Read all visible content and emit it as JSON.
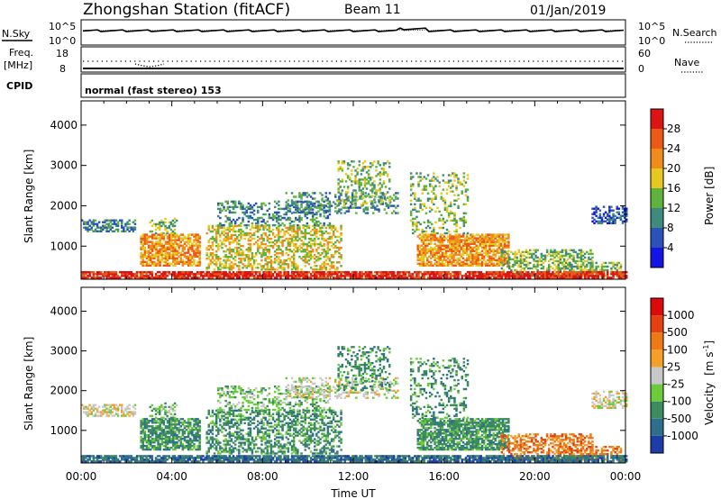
{
  "header": {
    "station": "Zhongshan Station (fitACF)",
    "beam": "Beam 11",
    "date": "01/Jan/2019"
  },
  "noise_panel": {
    "left_label": "N.Sky",
    "right_label": "N.Search",
    "left_ticks": [
      "10^5",
      "10^0"
    ],
    "right_ticks": [
      "10^5",
      "10^0"
    ]
  },
  "freq_panel": {
    "left_label_1": "Freq.",
    "left_label_2": "[MHz]",
    "right_label": "Nave",
    "left_ticks": [
      "18",
      "8"
    ],
    "right_ticks": [
      "60",
      "0"
    ]
  },
  "cpid": {
    "label": "CPID",
    "mode": "normal (fast stereo) 153"
  },
  "chart_data": [
    {
      "type": "heatmap",
      "name": "power",
      "ylabel": "Slant Range [km]",
      "xlabel": "",
      "ylim": [
        180,
        4600
      ],
      "y_ticks": [
        "4000",
        "3000",
        "2000",
        "1000"
      ],
      "x_ticks": [
        "00:00",
        "04:00",
        "08:00",
        "12:00",
        "16:00",
        "20:00",
        "00:00"
      ],
      "colorbar": {
        "label": "Power [dB]",
        "ticks": [
          "28",
          "24",
          "20",
          "16",
          "12",
          "8",
          "4"
        ],
        "levels": [
          0,
          4,
          8,
          12,
          16,
          20,
          24,
          28,
          30
        ],
        "colors": [
          "#1515e6",
          "#2a52b8",
          "#3f8a7e",
          "#5fb23c",
          "#e6c81e",
          "#f08c1e",
          "#eb5a14",
          "#dc1414"
        ]
      }
    },
    {
      "type": "heatmap",
      "name": "velocity",
      "ylabel": "Slant Range [km]",
      "xlabel": "Time UT",
      "ylim": [
        180,
        4600
      ],
      "y_ticks": [
        "4000",
        "3000",
        "2000",
        "1000"
      ],
      "x_ticks": [
        "00:00",
        "04:00",
        "08:00",
        "12:00",
        "16:00",
        "20:00",
        "00:00"
      ],
      "colorbar": {
        "label": "Velocity",
        "unit_prefix": "[m s",
        "unit_exp": "-1",
        "unit_suffix": "]",
        "ticks": [
          "1000",
          "500",
          "100",
          "25",
          "-25",
          "-100",
          "-500",
          "-1000"
        ],
        "colors": [
          "#1e3ca8",
          "#2e6f8c",
          "#3d8c60",
          "#6ccb3c",
          "#c8c8c8",
          "#f5a028",
          "#ee7a16",
          "#e44010",
          "#dc0a0a"
        ]
      }
    }
  ]
}
